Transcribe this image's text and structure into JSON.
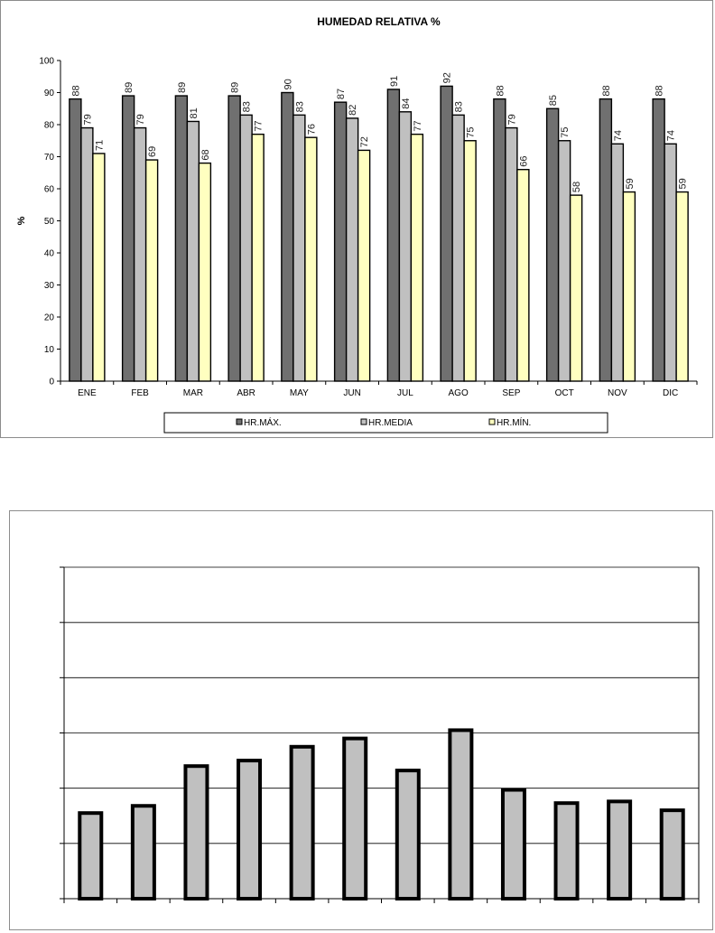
{
  "chart_data": [
    {
      "type": "bar",
      "title": "HUMEDAD RELATIVA %",
      "xlabel": "",
      "ylabel": "%",
      "ylim": [
        0,
        100
      ],
      "ytick_step": 10,
      "grid": false,
      "legend_position": "bottom",
      "categories": [
        "ENE",
        "FEB",
        "MAR",
        "ABR",
        "MAY",
        "JUN",
        "JUL",
        "AGO",
        "SEP",
        "OCT",
        "NOV",
        "DIC"
      ],
      "series": [
        {
          "name": "HR.MÁX.",
          "color": "#707070",
          "values": [
            88,
            89,
            89,
            89,
            90,
            87,
            91,
            92,
            88,
            85,
            88,
            88
          ]
        },
        {
          "name": "HR.MEDIA",
          "color": "#c0c0c0",
          "values": [
            79,
            79,
            81,
            83,
            83,
            82,
            84,
            83,
            79,
            75,
            74,
            74
          ]
        },
        {
          "name": "HR.MÍN.",
          "color": "#ffffc0",
          "values": [
            71,
            69,
            68,
            77,
            76,
            72,
            77,
            75,
            66,
            58,
            59,
            59
          ]
        }
      ]
    },
    {
      "type": "bar",
      "title": "",
      "xlabel": "",
      "ylabel": "",
      "ylim": [
        0,
        6
      ],
      "grid": true,
      "bar_color": "#c0c0c0",
      "categories": [
        "",
        "",
        "",
        "",
        "",
        "",
        "",
        "",
        "",
        "",
        "",
        ""
      ],
      "values": [
        1.55,
        1.68,
        2.4,
        2.5,
        2.75,
        2.9,
        2.32,
        3.05,
        1.97,
        1.73,
        1.76,
        1.6
      ]
    }
  ]
}
